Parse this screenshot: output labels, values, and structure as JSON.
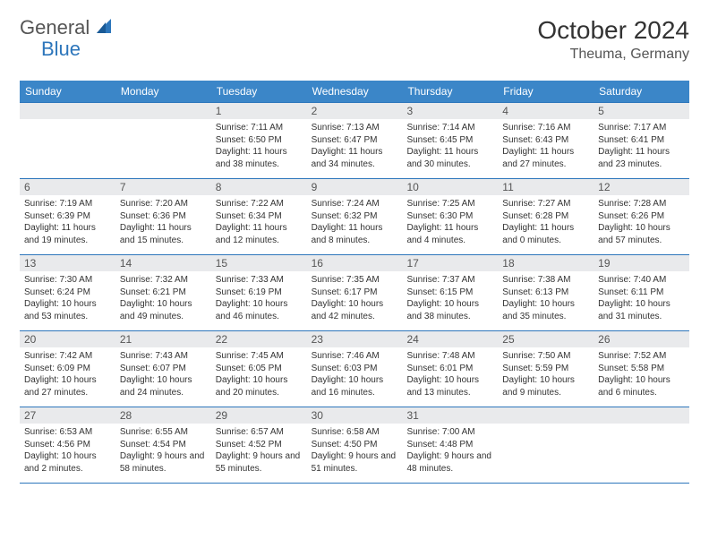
{
  "logo": {
    "part1": "General",
    "part2": "Blue"
  },
  "title": "October 2024",
  "location": "Theuma, Germany",
  "colors": {
    "header_bg": "#3b86c8",
    "border": "#2d76bb",
    "daynum_bg": "#e9eaec",
    "text": "#333333",
    "logo_gray": "#555555",
    "logo_blue": "#2d76bb"
  },
  "day_names": [
    "Sunday",
    "Monday",
    "Tuesday",
    "Wednesday",
    "Thursday",
    "Friday",
    "Saturday"
  ],
  "weeks": [
    [
      {
        "num": "",
        "lines": []
      },
      {
        "num": "",
        "lines": []
      },
      {
        "num": "1",
        "lines": [
          "Sunrise: 7:11 AM",
          "Sunset: 6:50 PM",
          "Daylight: 11 hours and 38 minutes."
        ]
      },
      {
        "num": "2",
        "lines": [
          "Sunrise: 7:13 AM",
          "Sunset: 6:47 PM",
          "Daylight: 11 hours and 34 minutes."
        ]
      },
      {
        "num": "3",
        "lines": [
          "Sunrise: 7:14 AM",
          "Sunset: 6:45 PM",
          "Daylight: 11 hours and 30 minutes."
        ]
      },
      {
        "num": "4",
        "lines": [
          "Sunrise: 7:16 AM",
          "Sunset: 6:43 PM",
          "Daylight: 11 hours and 27 minutes."
        ]
      },
      {
        "num": "5",
        "lines": [
          "Sunrise: 7:17 AM",
          "Sunset: 6:41 PM",
          "Daylight: 11 hours and 23 minutes."
        ]
      }
    ],
    [
      {
        "num": "6",
        "lines": [
          "Sunrise: 7:19 AM",
          "Sunset: 6:39 PM",
          "Daylight: 11 hours and 19 minutes."
        ]
      },
      {
        "num": "7",
        "lines": [
          "Sunrise: 7:20 AM",
          "Sunset: 6:36 PM",
          "Daylight: 11 hours and 15 minutes."
        ]
      },
      {
        "num": "8",
        "lines": [
          "Sunrise: 7:22 AM",
          "Sunset: 6:34 PM",
          "Daylight: 11 hours and 12 minutes."
        ]
      },
      {
        "num": "9",
        "lines": [
          "Sunrise: 7:24 AM",
          "Sunset: 6:32 PM",
          "Daylight: 11 hours and 8 minutes."
        ]
      },
      {
        "num": "10",
        "lines": [
          "Sunrise: 7:25 AM",
          "Sunset: 6:30 PM",
          "Daylight: 11 hours and 4 minutes."
        ]
      },
      {
        "num": "11",
        "lines": [
          "Sunrise: 7:27 AM",
          "Sunset: 6:28 PM",
          "Daylight: 11 hours and 0 minutes."
        ]
      },
      {
        "num": "12",
        "lines": [
          "Sunrise: 7:28 AM",
          "Sunset: 6:26 PM",
          "Daylight: 10 hours and 57 minutes."
        ]
      }
    ],
    [
      {
        "num": "13",
        "lines": [
          "Sunrise: 7:30 AM",
          "Sunset: 6:24 PM",
          "Daylight: 10 hours and 53 minutes."
        ]
      },
      {
        "num": "14",
        "lines": [
          "Sunrise: 7:32 AM",
          "Sunset: 6:21 PM",
          "Daylight: 10 hours and 49 minutes."
        ]
      },
      {
        "num": "15",
        "lines": [
          "Sunrise: 7:33 AM",
          "Sunset: 6:19 PM",
          "Daylight: 10 hours and 46 minutes."
        ]
      },
      {
        "num": "16",
        "lines": [
          "Sunrise: 7:35 AM",
          "Sunset: 6:17 PM",
          "Daylight: 10 hours and 42 minutes."
        ]
      },
      {
        "num": "17",
        "lines": [
          "Sunrise: 7:37 AM",
          "Sunset: 6:15 PM",
          "Daylight: 10 hours and 38 minutes."
        ]
      },
      {
        "num": "18",
        "lines": [
          "Sunrise: 7:38 AM",
          "Sunset: 6:13 PM",
          "Daylight: 10 hours and 35 minutes."
        ]
      },
      {
        "num": "19",
        "lines": [
          "Sunrise: 7:40 AM",
          "Sunset: 6:11 PM",
          "Daylight: 10 hours and 31 minutes."
        ]
      }
    ],
    [
      {
        "num": "20",
        "lines": [
          "Sunrise: 7:42 AM",
          "Sunset: 6:09 PM",
          "Daylight: 10 hours and 27 minutes."
        ]
      },
      {
        "num": "21",
        "lines": [
          "Sunrise: 7:43 AM",
          "Sunset: 6:07 PM",
          "Daylight: 10 hours and 24 minutes."
        ]
      },
      {
        "num": "22",
        "lines": [
          "Sunrise: 7:45 AM",
          "Sunset: 6:05 PM",
          "Daylight: 10 hours and 20 minutes."
        ]
      },
      {
        "num": "23",
        "lines": [
          "Sunrise: 7:46 AM",
          "Sunset: 6:03 PM",
          "Daylight: 10 hours and 16 minutes."
        ]
      },
      {
        "num": "24",
        "lines": [
          "Sunrise: 7:48 AM",
          "Sunset: 6:01 PM",
          "Daylight: 10 hours and 13 minutes."
        ]
      },
      {
        "num": "25",
        "lines": [
          "Sunrise: 7:50 AM",
          "Sunset: 5:59 PM",
          "Daylight: 10 hours and 9 minutes."
        ]
      },
      {
        "num": "26",
        "lines": [
          "Sunrise: 7:52 AM",
          "Sunset: 5:58 PM",
          "Daylight: 10 hours and 6 minutes."
        ]
      }
    ],
    [
      {
        "num": "27",
        "lines": [
          "Sunrise: 6:53 AM",
          "Sunset: 4:56 PM",
          "Daylight: 10 hours and 2 minutes."
        ]
      },
      {
        "num": "28",
        "lines": [
          "Sunrise: 6:55 AM",
          "Sunset: 4:54 PM",
          "Daylight: 9 hours and 58 minutes."
        ]
      },
      {
        "num": "29",
        "lines": [
          "Sunrise: 6:57 AM",
          "Sunset: 4:52 PM",
          "Daylight: 9 hours and 55 minutes."
        ]
      },
      {
        "num": "30",
        "lines": [
          "Sunrise: 6:58 AM",
          "Sunset: 4:50 PM",
          "Daylight: 9 hours and 51 minutes."
        ]
      },
      {
        "num": "31",
        "lines": [
          "Sunrise: 7:00 AM",
          "Sunset: 4:48 PM",
          "Daylight: 9 hours and 48 minutes."
        ]
      },
      {
        "num": "",
        "lines": []
      },
      {
        "num": "",
        "lines": []
      }
    ]
  ]
}
